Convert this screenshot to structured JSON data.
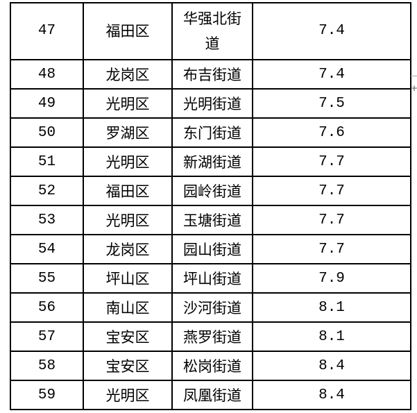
{
  "table": {
    "rows": [
      {
        "no": "47",
        "district": "福田区",
        "street": "华强北街道",
        "value": "7.4"
      },
      {
        "no": "48",
        "district": "龙岗区",
        "street": "布吉街道",
        "value": "7.4"
      },
      {
        "no": "49",
        "district": "光明区",
        "street": "光明街道",
        "value": "7.5"
      },
      {
        "no": "50",
        "district": "罗湖区",
        "street": "东门街道",
        "value": "7.6"
      },
      {
        "no": "51",
        "district": "光明区",
        "street": "新湖街道",
        "value": "7.7"
      },
      {
        "no": "52",
        "district": "福田区",
        "street": "园岭街道",
        "value": "7.7"
      },
      {
        "no": "53",
        "district": "光明区",
        "street": "玉塘街道",
        "value": "7.7"
      },
      {
        "no": "54",
        "district": "龙岗区",
        "street": "园山街道",
        "value": "7.7"
      },
      {
        "no": "55",
        "district": "坪山区",
        "street": "坪山街道",
        "value": "7.9"
      },
      {
        "no": "56",
        "district": "南山区",
        "street": "沙河街道",
        "value": "8.1"
      },
      {
        "no": "57",
        "district": "宝安区",
        "street": "燕罗街道",
        "value": "8.1"
      },
      {
        "no": "58",
        "district": "宝安区",
        "street": "松岗街道",
        "value": "8.4"
      },
      {
        "no": "59",
        "district": "光明区",
        "street": "凤凰街道",
        "value": "8.4"
      }
    ]
  },
  "handle_icon": "plus-icon",
  "handle_glyph": "+"
}
